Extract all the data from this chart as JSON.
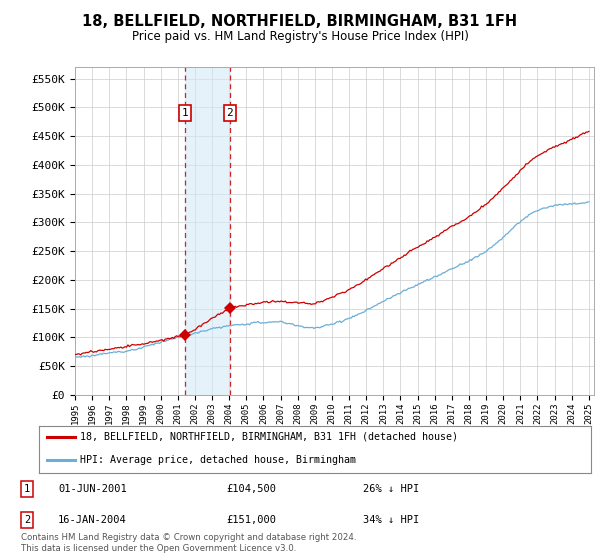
{
  "title": "18, BELLFIELD, NORTHFIELD, BIRMINGHAM, B31 1FH",
  "subtitle": "Price paid vs. HM Land Registry's House Price Index (HPI)",
  "y_ticks": [
    0,
    50000,
    100000,
    150000,
    200000,
    250000,
    300000,
    350000,
    400000,
    450000,
    500000,
    550000
  ],
  "y_tick_labels": [
    "£0",
    "£50K",
    "£100K",
    "£150K",
    "£200K",
    "£250K",
    "£300K",
    "£350K",
    "£400K",
    "£450K",
    "£500K",
    "£550K"
  ],
  "hpi_color": "#6baed6",
  "price_color": "#cc0000",
  "transaction1_date": 2001.42,
  "transaction1_price": 104500,
  "transaction2_date": 2004.04,
  "transaction2_price": 151000,
  "legend_label_red": "18, BELLFIELD, NORTHFIELD, BIRMINGHAM, B31 1FH (detached house)",
  "legend_label_blue": "HPI: Average price, detached house, Birmingham",
  "annotation1_text": "01-JUN-2001",
  "annotation1_price": "£104,500",
  "annotation1_note": "26% ↓ HPI",
  "annotation2_text": "16-JAN-2004",
  "annotation2_price": "£151,000",
  "annotation2_note": "34% ↓ HPI",
  "footer": "Contains HM Land Registry data © Crown copyright and database right 2024.\nThis data is licensed under the Open Government Licence v3.0.",
  "background_color": "#ffffff",
  "grid_color": "#cccccc"
}
